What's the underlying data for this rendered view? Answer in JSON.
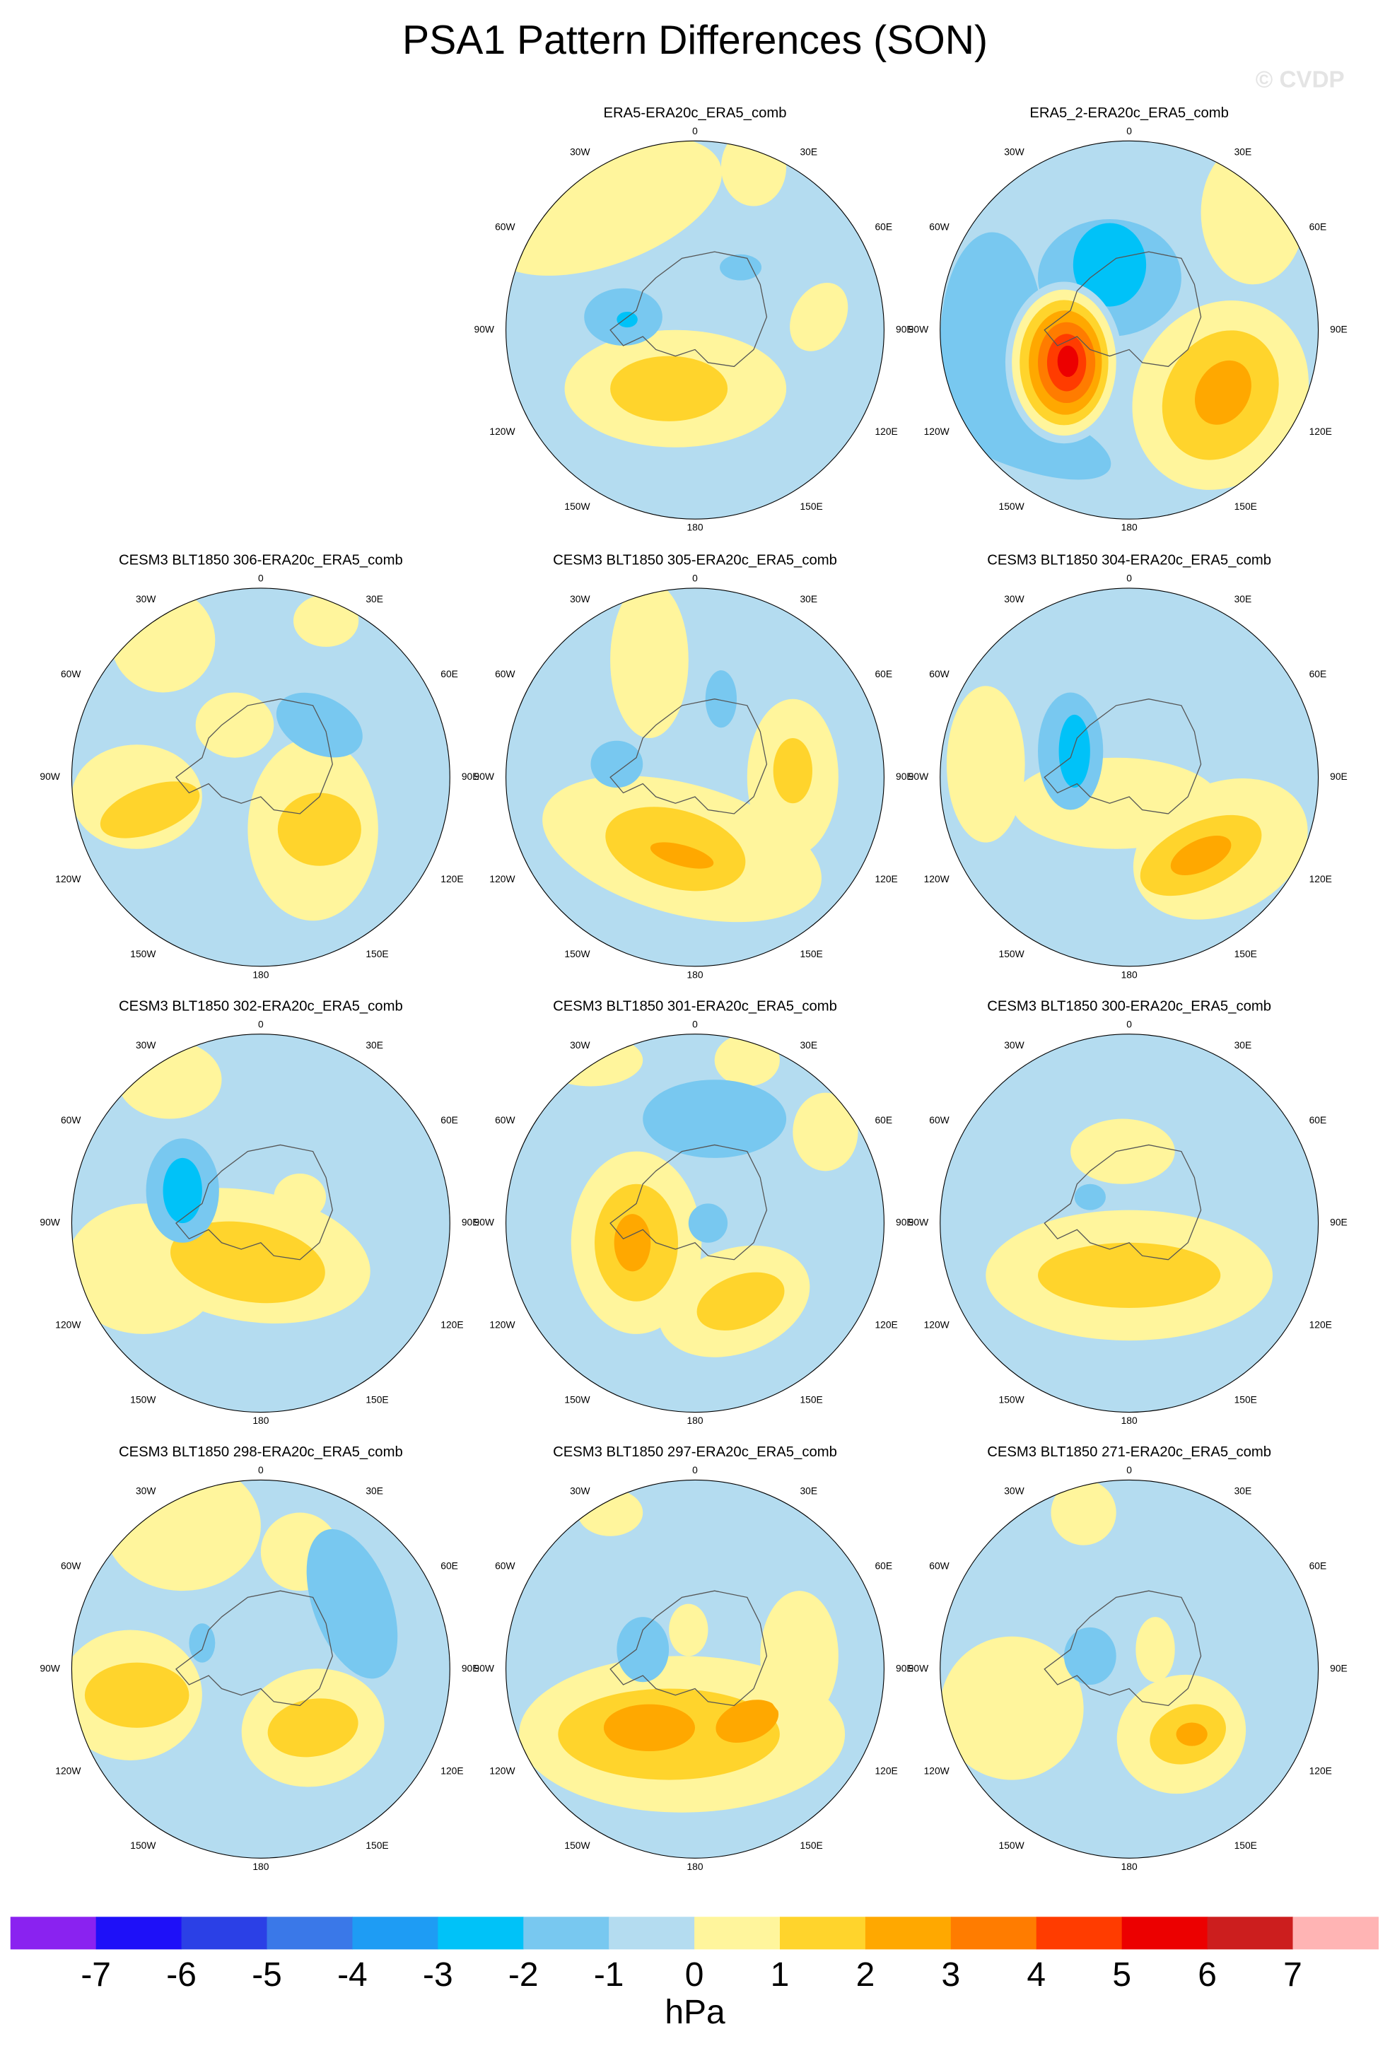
{
  "title": "PSA1 Pattern Differences (SON)",
  "watermark": "© CVDP",
  "panels": [
    {
      "title": "ERA5-ERA20c_ERA5_comb"
    },
    {
      "title": "ERA5_2-ERA20c_ERA5_comb"
    },
    {
      "title": "CESM3 BLT1850 306-ERA20c_ERA5_comb"
    },
    {
      "title": "CESM3 BLT1850 305-ERA20c_ERA5_comb"
    },
    {
      "title": "CESM3 BLT1850 304-ERA20c_ERA5_comb"
    },
    {
      "title": "CESM3 BLT1850 302-ERA20c_ERA5_comb"
    },
    {
      "title": "CESM3 BLT1850 301-ERA20c_ERA5_comb"
    },
    {
      "title": "CESM3 BLT1850 300-ERA20c_ERA5_comb"
    },
    {
      "title": "CESM3 BLT1850 298-ERA20c_ERA5_comb"
    },
    {
      "title": "CESM3 BLT1850 297-ERA20c_ERA5_comb"
    },
    {
      "title": "CESM3 BLT1850 271-ERA20c_ERA5_comb"
    }
  ],
  "longitude_labels": [
    "0",
    "30E",
    "60E",
    "90E",
    "120E",
    "150E",
    "180",
    "150W",
    "120W",
    "90W",
    "60W",
    "30W"
  ],
  "colorbar": {
    "levels": [
      -7,
      -6,
      -5,
      -4,
      -3,
      -2,
      -1,
      0,
      1,
      2,
      3,
      4,
      5,
      6,
      7
    ],
    "colors": [
      "#8a22f0",
      "#1e10f8",
      "#2b40e6",
      "#3a78e8",
      "#1e9cf4",
      "#00c2f8",
      "#78c8f0",
      "#b4dcf0",
      "#fff59c",
      "#ffd42c",
      "#ffa800",
      "#ff7c00",
      "#ff3c00",
      "#ec0000",
      "#cc1e1e",
      "#ffb4b4"
    ],
    "units": "hPa"
  }
}
